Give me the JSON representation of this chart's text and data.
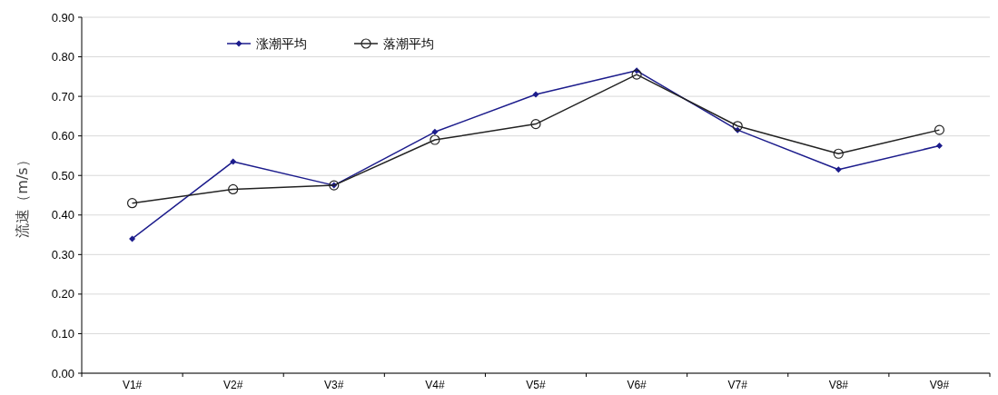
{
  "chart_data": {
    "type": "line",
    "ylabel": "流速（m/s）",
    "categories": [
      "V1#",
      "V2#",
      "V3#",
      "V4#",
      "V5#",
      "V6#",
      "V7#",
      "V8#",
      "V9#"
    ],
    "series": [
      {
        "name": "涨潮平均",
        "color": "#1c1c8c",
        "marker": "diamond",
        "values": [
          0.34,
          0.535,
          0.475,
          0.61,
          0.705,
          0.765,
          0.615,
          0.515,
          0.575
        ]
      },
      {
        "name": "落潮平均",
        "color": "#222222",
        "marker": "circle",
        "values": [
          0.43,
          0.465,
          0.475,
          0.59,
          0.63,
          0.755,
          0.625,
          0.555,
          0.615
        ]
      }
    ],
    "ylim": [
      0,
      0.9
    ],
    "yticks": [
      {
        "value": 0,
        "label": "0.00"
      },
      {
        "value": 0.1,
        "label": "0.10"
      },
      {
        "value": 0.2,
        "label": "0.20"
      },
      {
        "value": 0.3,
        "label": "0.30"
      },
      {
        "value": 0.4,
        "label": "0.40"
      },
      {
        "value": 0.5,
        "label": "0.50"
      },
      {
        "value": 0.6,
        "label": "0.60"
      },
      {
        "value": 0.7,
        "label": "0.70"
      },
      {
        "value": 0.8,
        "label": "0.80"
      },
      {
        "value": 0.9,
        "label": "0.90"
      }
    ],
    "grid": "y",
    "legend": "top"
  }
}
